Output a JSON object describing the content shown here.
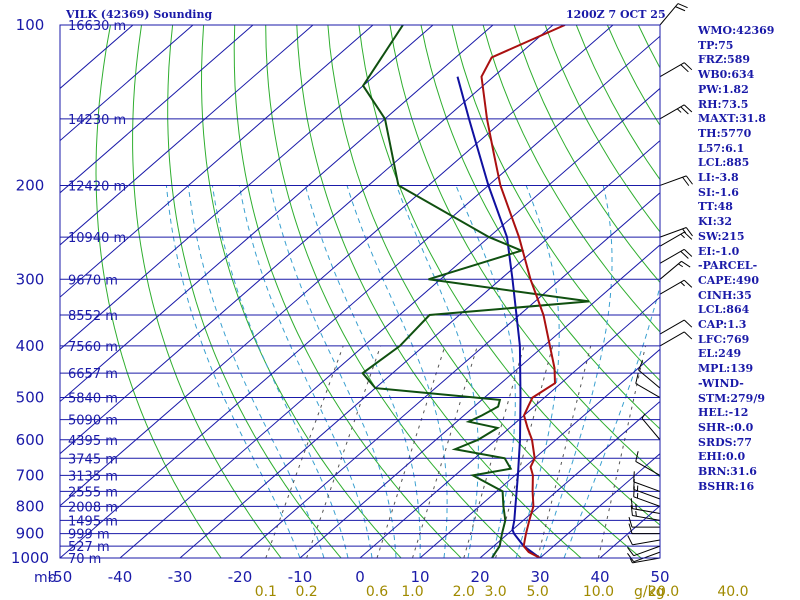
{
  "header": {
    "station": "VILK (42369) Sounding",
    "datetime": "1200Z  7 OCT 25"
  },
  "indices": [
    "WMO:42369",
    "TP:75",
    "FRZ:589",
    "WB0:634",
    "PW:1.82",
    "RH:73.5",
    "MAXT:31.8",
    "TH:5770",
    "L57:6.1",
    "LCL:885",
    "LI:-3.8",
    "SI:-1.6",
    "TT:48",
    "KI:32",
    "SW:215",
    "EI:-1.0",
    "-PARCEL-",
    "CAPE:490",
    "CINH:35",
    "LCL:864",
    "CAP:1.3",
    "LFC:769",
    "EL:249",
    "MPL:139",
    "-WIND-",
    "STM:279/9",
    "HEL:-12",
    "SHR-:0.0",
    "SRDS:77",
    "EHI:0.0",
    "BRN:31.6",
    "BSHR:16"
  ],
  "chart_data": {
    "type": "skew-t",
    "pressure_unit": "mb",
    "pressure_range": [
      100,
      1000
    ],
    "temperature_range": [
      -50,
      50
    ],
    "pressure_ticks": [
      100,
      200,
      300,
      400,
      500,
      600,
      700,
      800,
      900,
      1000
    ],
    "temperature_ticks": [
      "-50",
      "-40",
      "-30",
      "-20",
      "-10",
      "0",
      "10",
      "20",
      "30",
      "40",
      "50"
    ],
    "mixing_ratio_unit": "g/kg",
    "mixing_ratio_ticks": [
      {
        "label": "0.1",
        "g": 0.1
      },
      {
        "label": "0.2",
        "g": 0.2
      },
      {
        "label": "0.6",
        "g": 0.6
      },
      {
        "label": "1.0",
        "g": 1.0
      },
      {
        "label": "2.0",
        "g": 2.0
      },
      {
        "label": "3.0",
        "g": 3.0
      },
      {
        "label": "5.0",
        "g": 5.0
      },
      {
        "label": "10.0",
        "g": 10.0
      },
      {
        "label": "20.0",
        "g": 20.0
      },
      {
        "label": "40.0",
        "g": 40.0
      }
    ],
    "height_labels": [
      {
        "p": 100,
        "h": "16630 m"
      },
      {
        "p": 150,
        "h": "14230 m"
      },
      {
        "p": 200,
        "h": "12420 m"
      },
      {
        "p": 250,
        "h": "10940 m"
      },
      {
        "p": 300,
        "h": "9670 m"
      },
      {
        "p": 350,
        "h": "8552 m"
      },
      {
        "p": 400,
        "h": "7560 m"
      },
      {
        "p": 450,
        "h": "6657 m"
      },
      {
        "p": 500,
        "h": "5840 m"
      },
      {
        "p": 550,
        "h": "5090 m"
      },
      {
        "p": 600,
        "h": "4395 m"
      },
      {
        "p": 650,
        "h": "3745 m"
      },
      {
        "p": 700,
        "h": "3135 m"
      },
      {
        "p": 750,
        "h": "2555 m"
      },
      {
        "p": 800,
        "h": "2008 m"
      },
      {
        "p": 850,
        "h": "1495 m"
      },
      {
        "p": 900,
        "h": "999 m"
      },
      {
        "p": 950,
        "h": "527 m"
      },
      {
        "p": 1000,
        "h": "70 m"
      }
    ],
    "temperature_profile": [
      {
        "p": 1000,
        "t": 30
      },
      {
        "p": 975,
        "t": 27
      },
      {
        "p": 950,
        "t": 25
      },
      {
        "p": 925,
        "t": 24
      },
      {
        "p": 900,
        "t": 23
      },
      {
        "p": 850,
        "t": 21
      },
      {
        "p": 800,
        "t": 19
      },
      {
        "p": 750,
        "t": 16
      },
      {
        "p": 700,
        "t": 13
      },
      {
        "p": 675,
        "t": 11
      },
      {
        "p": 650,
        "t": 10
      },
      {
        "p": 600,
        "t": 6
      },
      {
        "p": 570,
        "t": 3
      },
      {
        "p": 540,
        "t": 0
      },
      {
        "p": 520,
        "t": -1
      },
      {
        "p": 500,
        "t": -2
      },
      {
        "p": 470,
        "t": -1
      },
      {
        "p": 440,
        "t": -4
      },
      {
        "p": 400,
        "t": -9
      },
      {
        "p": 350,
        "t": -16
      },
      {
        "p": 300,
        "t": -25
      },
      {
        "p": 250,
        "t": -35
      },
      {
        "p": 200,
        "t": -48
      },
      {
        "p": 175,
        "t": -55
      },
      {
        "p": 150,
        "t": -63
      },
      {
        "p": 125,
        "t": -72
      },
      {
        "p": 115,
        "t": -74
      },
      {
        "p": 100,
        "t": -68
      }
    ],
    "dewpoint_profile": [
      {
        "p": 1000,
        "td": 22
      },
      {
        "p": 975,
        "td": 21.5
      },
      {
        "p": 950,
        "td": 21
      },
      {
        "p": 925,
        "td": 20
      },
      {
        "p": 900,
        "td": 19
      },
      {
        "p": 850,
        "td": 17
      },
      {
        "p": 800,
        "td": 14
      },
      {
        "p": 750,
        "td": 11
      },
      {
        "p": 700,
        "td": 3
      },
      {
        "p": 680,
        "td": 8
      },
      {
        "p": 650,
        "td": 5
      },
      {
        "p": 625,
        "td": -5
      },
      {
        "p": 600,
        "td": -3
      },
      {
        "p": 570,
        "td": -2
      },
      {
        "p": 555,
        "td": -8
      },
      {
        "p": 540,
        "td": -7
      },
      {
        "p": 520,
        "td": -6
      },
      {
        "p": 505,
        "td": -7
      },
      {
        "p": 480,
        "td": -30
      },
      {
        "p": 450,
        "td": -35
      },
      {
        "p": 400,
        "td": -34
      },
      {
        "p": 350,
        "td": -35
      },
      {
        "p": 330,
        "td": -11
      },
      {
        "p": 300,
        "td": -42
      },
      {
        "p": 265,
        "td": -32
      },
      {
        "p": 250,
        "td": -40
      },
      {
        "p": 200,
        "td": -65
      },
      {
        "p": 150,
        "td": -80
      },
      {
        "p": 130,
        "td": -90
      },
      {
        "p": 100,
        "td": -95
      }
    ],
    "parcel_profile": [
      {
        "p": 1000,
        "t": 30
      },
      {
        "p": 950,
        "t": 25
      },
      {
        "p": 900,
        "t": 21
      },
      {
        "p": 885,
        "t": 20
      },
      {
        "p": 850,
        "t": 18.5
      },
      {
        "p": 800,
        "t": 16
      },
      {
        "p": 700,
        "t": 10.5
      },
      {
        "p": 600,
        "t": 4
      },
      {
        "p": 500,
        "t": -4
      },
      {
        "p": 400,
        "t": -14
      },
      {
        "p": 300,
        "t": -28
      },
      {
        "p": 250,
        "t": -37
      },
      {
        "p": 200,
        "t": -50
      },
      {
        "p": 150,
        "t": -66
      },
      {
        "p": 125,
        "t": -76
      }
    ],
    "wind_barbs": [
      {
        "p": 1000,
        "dir": 260,
        "kt": 5
      },
      {
        "p": 975,
        "dir": 250,
        "kt": 10
      },
      {
        "p": 950,
        "dir": 250,
        "kt": 10
      },
      {
        "p": 925,
        "dir": 260,
        "kt": 10
      },
      {
        "p": 900,
        "dir": 270,
        "kt": 10
      },
      {
        "p": 875,
        "dir": 270,
        "kt": 10
      },
      {
        "p": 850,
        "dir": 280,
        "kt": 15
      },
      {
        "p": 825,
        "dir": 280,
        "kt": 15
      },
      {
        "p": 800,
        "dir": 290,
        "kt": 15
      },
      {
        "p": 775,
        "dir": 290,
        "kt": 15
      },
      {
        "p": 750,
        "dir": 290,
        "kt": 10
      },
      {
        "p": 700,
        "dir": 300,
        "kt": 10
      },
      {
        "p": 600,
        "dir": 320,
        "kt": 5
      },
      {
        "p": 500,
        "dir": 300,
        "kt": 10
      },
      {
        "p": 480,
        "dir": 310,
        "kt": 10
      },
      {
        "p": 400,
        "dir": 60,
        "kt": 10
      },
      {
        "p": 380,
        "dir": 60,
        "kt": 10
      },
      {
        "p": 320,
        "dir": 60,
        "kt": 15
      },
      {
        "p": 300,
        "dir": 50,
        "kt": 15
      },
      {
        "p": 280,
        "dir": 60,
        "kt": 20
      },
      {
        "p": 260,
        "dir": 60,
        "kt": 15
      },
      {
        "p": 250,
        "dir": 70,
        "kt": 15
      },
      {
        "p": 200,
        "dir": 70,
        "kt": 20
      },
      {
        "p": 150,
        "dir": 60,
        "kt": 25
      },
      {
        "p": 125,
        "dir": 60,
        "kt": 20
      },
      {
        "p": 100,
        "dir": 40,
        "kt": 20
      }
    ],
    "colors": {
      "isobar": "#1a1aa8",
      "isotherm": "#1a1aa8",
      "dry_adiabat": "#2fae2f",
      "moist_adiabat": "#3aa0d0",
      "mixing_ratio": "#555555",
      "temperature": "#aa1010",
      "dewpoint": "#105010",
      "parcel": "#1010a0",
      "wind": "#000000",
      "text": "#1a1aa8",
      "mixing_label": "#a08a00"
    }
  }
}
